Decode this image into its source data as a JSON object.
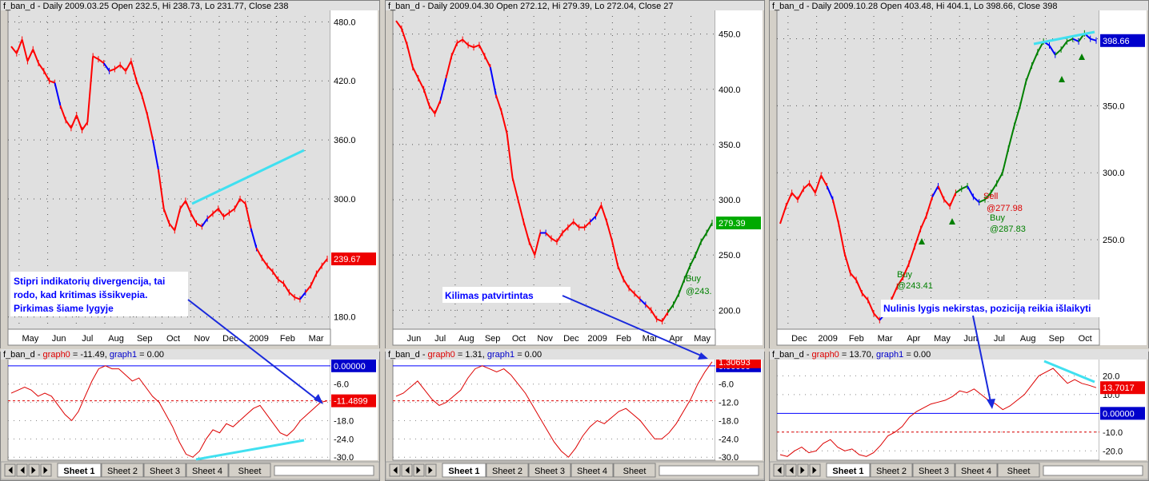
{
  "colors": {
    "plot_bg": "#e0e0e0",
    "price_down": "#ff0000",
    "price_up": "#0000ff",
    "price_buy": "#008000",
    "divergence_line": "#40e0f0",
    "annotation_arrow": "#1a2adc",
    "annotation_text": "#0000ff",
    "osc_line": "#dd0000",
    "zero_line": "#0000ff"
  },
  "tabs": [
    "Sheet 1",
    "Sheet 2",
    "Sheet 3",
    "Sheet 4",
    "Sheet"
  ],
  "panels": [
    {
      "title_price": "f_ban_d - Daily 2009.03.25 Open 232.5, Hi 238.73, Lo 231.77, Close 238",
      "osc_prefix": "f_ban_d - ",
      "osc_g0_label": "graph0",
      "osc_g0_value": " = -11.49, ",
      "osc_g1_label": "graph1",
      "osc_g1_value": " = 0.00",
      "last_price_tag": "239.67",
      "osc_tag_zero": "0.00000",
      "osc_tag_value": "-11.4899",
      "annotation_lines": [
        "Stipri indikatorių divergencija, tai",
        "rodo, kad kritimas išsikvepia.",
        "Pirkimas šiame lygyje"
      ],
      "signal_labels": []
    },
    {
      "title_price": "f_ban_d - Daily 2009.04.30 Open 272.12, Hi 279.39, Lo 272.04, Close 27",
      "osc_prefix": "f_ban_d - ",
      "osc_g0_label": "graph0",
      "osc_g0_value": " = 1.31, ",
      "osc_g1_label": "graph1",
      "osc_g1_value": " = 0.00",
      "last_price_tag": "279.39",
      "osc_tag_zero": "0.00000",
      "osc_tag_value": "1.30693",
      "annotation_lines": [
        "Kilimas patvirtintas"
      ],
      "signal_labels": [
        {
          "text": "Buy",
          "color": "#008000"
        },
        {
          "text": "@243.",
          "color": "#008000"
        }
      ]
    },
    {
      "title_price": "f_ban_d - Daily 2009.10.28 Open 403.48, Hi 404.1, Lo 398.66, Close 398",
      "osc_prefix": "f_ban_d - ",
      "osc_g0_label": "graph0",
      "osc_g0_value": " = 13.70, ",
      "osc_g1_label": "graph1",
      "osc_g1_value": " = 0.00",
      "last_price_tag": "398.66",
      "osc_tag_zero": "0.00000",
      "osc_tag_value": "13.7017",
      "annotation_lines": [
        "Nulinis lygis nekirstas, poziciją reikia išlaikyti"
      ],
      "signal_labels": [
        {
          "text": "Sell",
          "color": "#dd0000"
        },
        {
          "text": "@277.98",
          "color": "#dd0000"
        },
        {
          "text": "Buy",
          "color": "#008000"
        },
        {
          "text": "@287.83",
          "color": "#008000"
        },
        {
          "text": "Buy",
          "color": "#008000"
        },
        {
          "text": "@243.41",
          "color": "#008000"
        }
      ]
    }
  ],
  "chart_data": [
    {
      "type": "line",
      "x_labels": [
        "May",
        "Jun",
        "Jul",
        "Aug",
        "Sep",
        "Oct",
        "Nov",
        "Dec",
        "2009",
        "Feb",
        "Mar"
      ],
      "y_ticks": [
        480.0,
        420.0,
        360.0,
        300.0,
        180.0
      ],
      "ylim": [
        170,
        490
      ],
      "series": [
        {
          "values": [
            455,
            448,
            462,
            440,
            452,
            438,
            430,
            420,
            418,
            395,
            380,
            372,
            385,
            370,
            378,
            445,
            442,
            438,
            430,
            432,
            436,
            430,
            440,
            420,
            405,
            385,
            360,
            330,
            290,
            275,
            268,
            290,
            298,
            285,
            275,
            272,
            280,
            285,
            290,
            282,
            286,
            290,
            300,
            295,
            270,
            250,
            240,
            232,
            226,
            218,
            214,
            205,
            200,
            198,
            205,
            212,
            224,
            232,
            239
          ]
        }
      ],
      "divergence": {
        "from": [
          240,
          255
        ],
        "to": [
          380,
          188
        ]
      },
      "osc": {
        "y_ticks": [
          -6.0,
          -12.0,
          -18.0,
          -24.0,
          -30.0
        ],
        "ylim": [
          -31,
          1
        ],
        "zero": 0,
        "ref": -11.49,
        "values": [
          -9,
          -8,
          -7,
          -8,
          -10,
          -9,
          -10,
          -13,
          -16,
          -18,
          -15,
          -10,
          -5,
          -1,
          0,
          -1,
          -1,
          -3,
          -5,
          -4,
          -7,
          -10,
          -12,
          -16,
          -20,
          -25,
          -29,
          -30,
          -28,
          -24,
          -21,
          -22,
          -19,
          -20,
          -18,
          -16,
          -14,
          -13,
          -16,
          -19,
          -22,
          -23,
          -21,
          -18,
          -16,
          -14,
          -12,
          -11.49
        ],
        "divergence": {
          "from": [
            245,
            575
          ],
          "to": [
            380,
            551
          ]
        }
      }
    },
    {
      "type": "line",
      "x_labels": [
        "Jun",
        "Jul",
        "Aug",
        "Sep",
        "Oct",
        "Nov",
        "Dec",
        "2009",
        "Feb",
        "Mar",
        "Apr",
        "May"
      ],
      "y_ticks": [
        450.0,
        400.0,
        350.0,
        300.0,
        250.0,
        200.0
      ],
      "ylim": [
        185,
        470
      ],
      "series": [
        {
          "values": [
            462,
            455,
            440,
            420,
            410,
            400,
            385,
            378,
            390,
            410,
            430,
            442,
            445,
            440,
            438,
            440,
            430,
            420,
            395,
            380,
            360,
            320,
            300,
            280,
            262,
            250,
            270,
            270,
            265,
            262,
            270,
            275,
            280,
            275,
            275,
            280,
            285,
            295,
            280,
            262,
            240,
            228,
            220,
            215,
            210,
            205,
            200,
            192,
            190,
            198,
            205,
            215,
            228,
            240,
            250,
            262,
            270,
            279
          ]
        }
      ],
      "osc": {
        "y_ticks": [
          -6.0,
          -12.0,
          -18.0,
          -24.0,
          -30.0
        ],
        "ylim": [
          -31,
          1
        ],
        "zero": 0,
        "ref": -11.49,
        "values": [
          -10,
          -9,
          -7,
          -5,
          -8,
          -11,
          -13,
          -12,
          -10,
          -8,
          -4,
          -1,
          0,
          -1,
          -2,
          -1,
          -3,
          -6,
          -9,
          -13,
          -17,
          -21,
          -25,
          -28,
          -30,
          -27,
          -23,
          -20,
          -18,
          -19,
          -17,
          -15,
          -14,
          -16,
          -18,
          -21,
          -24,
          -24,
          -22,
          -19,
          -15,
          -11,
          -6,
          -2,
          1.31
        ]
      }
    },
    {
      "type": "line",
      "x_labels": [
        "Dec",
        "2009",
        "Feb",
        "Mar",
        "Apr",
        "May",
        "Jun",
        "Jul",
        "Aug",
        "Sep",
        "Oct"
      ],
      "y_ticks": [
        400.0,
        350.0,
        300.0,
        250.0
      ],
      "ylim": [
        185,
        420
      ],
      "series": [
        {
          "values": [
            262,
            275,
            285,
            280,
            288,
            292,
            285,
            298,
            290,
            280,
            262,
            240,
            225,
            220,
            210,
            205,
            195,
            190,
            195,
            205,
            215,
            222,
            232,
            245,
            258,
            268,
            282,
            290,
            280,
            275,
            285,
            288,
            290,
            282,
            278,
            280,
            285,
            292,
            300,
            318,
            335,
            350,
            368,
            380,
            390,
            398,
            395,
            388,
            392,
            398,
            400,
            398,
            404,
            400,
            398.66
          ]
        }
      ],
      "divergence": {
        "from": [
          1292,
          55
        ],
        "to": [
          1368,
          40
        ]
      },
      "osc": {
        "y_ticks": [
          20.0,
          10.0,
          -10.0,
          -20.0
        ],
        "ylim": [
          -25,
          27
        ],
        "zero": 0,
        "ref": -10,
        "values": [
          -22,
          -23,
          -20,
          -18,
          -21,
          -20,
          -16,
          -14,
          -18,
          -20,
          -19,
          -22,
          -23,
          -21,
          -17,
          -12,
          -10,
          -7,
          -2,
          1,
          3,
          5,
          6,
          7,
          9,
          12,
          11,
          13,
          10,
          7,
          5,
          2,
          4,
          7,
          10,
          15,
          20,
          22,
          24,
          20,
          16,
          18,
          16,
          15,
          13.7
        ],
        "divergence": {
          "from": [
            1305,
            452
          ],
          "to": [
            1368,
            478
          ]
        }
      }
    }
  ]
}
